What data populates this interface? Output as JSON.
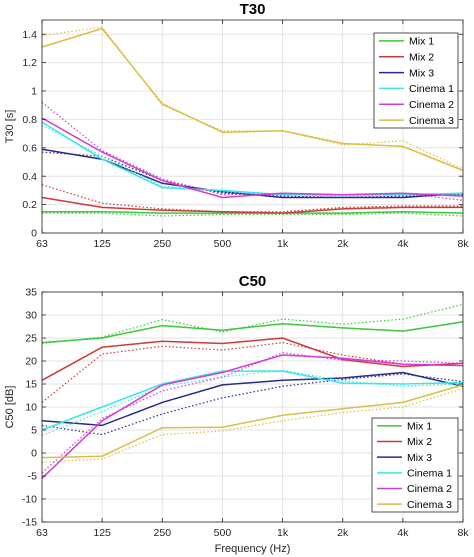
{
  "chart_data": [
    {
      "type": "line",
      "title": "T30",
      "xlabel": "",
      "ylabel": "T30 [s]",
      "categories": [
        "63",
        "125",
        "250",
        "500",
        "1k",
        "2k",
        "4k",
        "8k"
      ],
      "ylim": [
        0,
        1.5
      ],
      "yticks": [
        "0",
        "0.2",
        "0.4",
        "0.6",
        "0.8",
        "1",
        "1.2",
        "1.4"
      ],
      "grid": true,
      "legend_position": "top-right",
      "series": [
        {
          "name": "Mix 1",
          "color": "#3cc83c",
          "solid": [
            0.15,
            0.15,
            0.14,
            0.14,
            0.14,
            0.14,
            0.15,
            0.14
          ],
          "dotted": [
            0.14,
            0.14,
            0.12,
            0.13,
            0.13,
            0.13,
            0.14,
            0.12
          ]
        },
        {
          "name": "Mix 2",
          "color": "#cc3a3a",
          "solid": [
            0.25,
            0.18,
            0.16,
            0.15,
            0.14,
            0.17,
            0.18,
            0.18
          ],
          "dotted": [
            0.34,
            0.21,
            0.17,
            0.15,
            0.15,
            0.18,
            0.19,
            0.19
          ]
        },
        {
          "name": "Mix 3",
          "color": "#2a2a8a",
          "solid": [
            0.59,
            0.52,
            0.35,
            0.29,
            0.25,
            0.25,
            0.25,
            0.28
          ],
          "dotted": [
            0.57,
            0.54,
            0.37,
            0.28,
            0.26,
            0.25,
            0.26,
            0.27
          ]
        },
        {
          "name": "Cinema 1",
          "color": "#3ce6e6",
          "solid": [
            0.78,
            0.52,
            0.32,
            0.3,
            0.27,
            0.27,
            0.27,
            0.28
          ],
          "dotted": [
            0.76,
            0.54,
            0.33,
            0.29,
            0.27,
            0.26,
            0.27,
            0.27
          ]
        },
        {
          "name": "Cinema 2",
          "color": "#d23cd2",
          "solid": [
            0.81,
            0.57,
            0.37,
            0.25,
            0.28,
            0.27,
            0.28,
            0.26
          ],
          "dotted": [
            0.92,
            0.58,
            0.38,
            0.27,
            0.28,
            0.27,
            0.28,
            0.23
          ]
        },
        {
          "name": "Cinema 3",
          "color": "#dcbe46",
          "solid": [
            1.31,
            1.44,
            0.91,
            0.71,
            0.72,
            0.63,
            0.61,
            0.44
          ],
          "dotted": [
            1.39,
            1.45,
            0.9,
            0.72,
            0.72,
            0.62,
            0.65,
            0.45
          ]
        }
      ]
    },
    {
      "type": "line",
      "title": "C50",
      "xlabel": "Frequency (Hz)",
      "ylabel": "C50 [dB]",
      "categories": [
        "63",
        "125",
        "250",
        "500",
        "1k",
        "2k",
        "4k",
        "8k"
      ],
      "ylim": [
        -15,
        35
      ],
      "yticks": [
        "-15",
        "-10",
        "-5",
        "0",
        "5",
        "10",
        "15",
        "20",
        "25",
        "30",
        "35"
      ],
      "grid": true,
      "legend_position": "bottom-right",
      "series": [
        {
          "name": "Mix 1",
          "color": "#3cc83c",
          "solid": [
            24,
            25,
            27.7,
            26.7,
            28.1,
            27.2,
            26.5,
            28.5
          ],
          "dotted": [
            23.8,
            25.2,
            29,
            26.3,
            29.1,
            28,
            29.1,
            32.3
          ]
        },
        {
          "name": "Mix 2",
          "color": "#cc3a3a",
          "solid": [
            15.8,
            23,
            24.3,
            23.8,
            25,
            20.3,
            18.8,
            19.5
          ],
          "dotted": [
            11,
            21.5,
            23.2,
            22.4,
            24,
            21.3,
            19.3,
            19
          ]
        },
        {
          "name": "Mix 3",
          "color": "#2a2a8a",
          "solid": [
            7,
            6,
            11,
            14.8,
            15.8,
            16.3,
            17.5,
            14.5
          ],
          "dotted": [
            6,
            4,
            8.5,
            12,
            14.5,
            16,
            17.2,
            15.5
          ]
        },
        {
          "name": "Cinema 1",
          "color": "#3ce6e6",
          "solid": [
            5,
            10,
            15,
            17.8,
            17.8,
            15.2,
            15,
            15.3
          ],
          "dotted": [
            3.8,
            9,
            14.5,
            16.5,
            18,
            15.7,
            14.5,
            15
          ]
        },
        {
          "name": "Cinema 2",
          "color": "#d23cd2",
          "solid": [
            -5.5,
            7,
            14.8,
            17.5,
            21.3,
            20.6,
            19.3,
            19
          ],
          "dotted": [
            -4.3,
            7.5,
            13.5,
            16.5,
            21.8,
            20.2,
            20,
            19.5
          ]
        },
        {
          "name": "Cinema 3",
          "color": "#dcbe46",
          "solid": [
            -1,
            -0.7,
            5.5,
            5.6,
            8.2,
            9.6,
            11,
            14.8
          ],
          "dotted": [
            -2,
            -1.3,
            4,
            4.8,
            7,
            8.8,
            10,
            14
          ]
        }
      ]
    }
  ]
}
